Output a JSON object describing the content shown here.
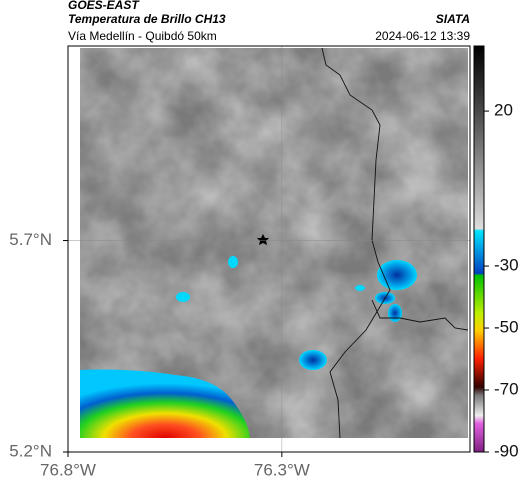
{
  "header": {
    "satellite": "GOES-EAST",
    "product": "Temperatura de Brillo CH13",
    "region": "Vía Medellín - Quibdó 50km",
    "source": "SIATA",
    "timestamp": "2024-06-12 13:39"
  },
  "map": {
    "xlim": [
      -76.8,
      -75.86
    ],
    "ylim": [
      5.2,
      6.16
    ],
    "xticks": [
      {
        "value": -76.8,
        "label": "76.8°W"
      },
      {
        "value": -76.3,
        "label": "76.3°W"
      }
    ],
    "yticks": [
      {
        "value": 5.2,
        "label": "5.2°N"
      },
      {
        "value": 5.7,
        "label": "5.7°N"
      }
    ],
    "grid": true
  },
  "colorbar": {
    "lim": [
      41,
      -90
    ],
    "ticks": [
      20,
      -30,
      -50,
      -70,
      -90
    ]
  }
}
